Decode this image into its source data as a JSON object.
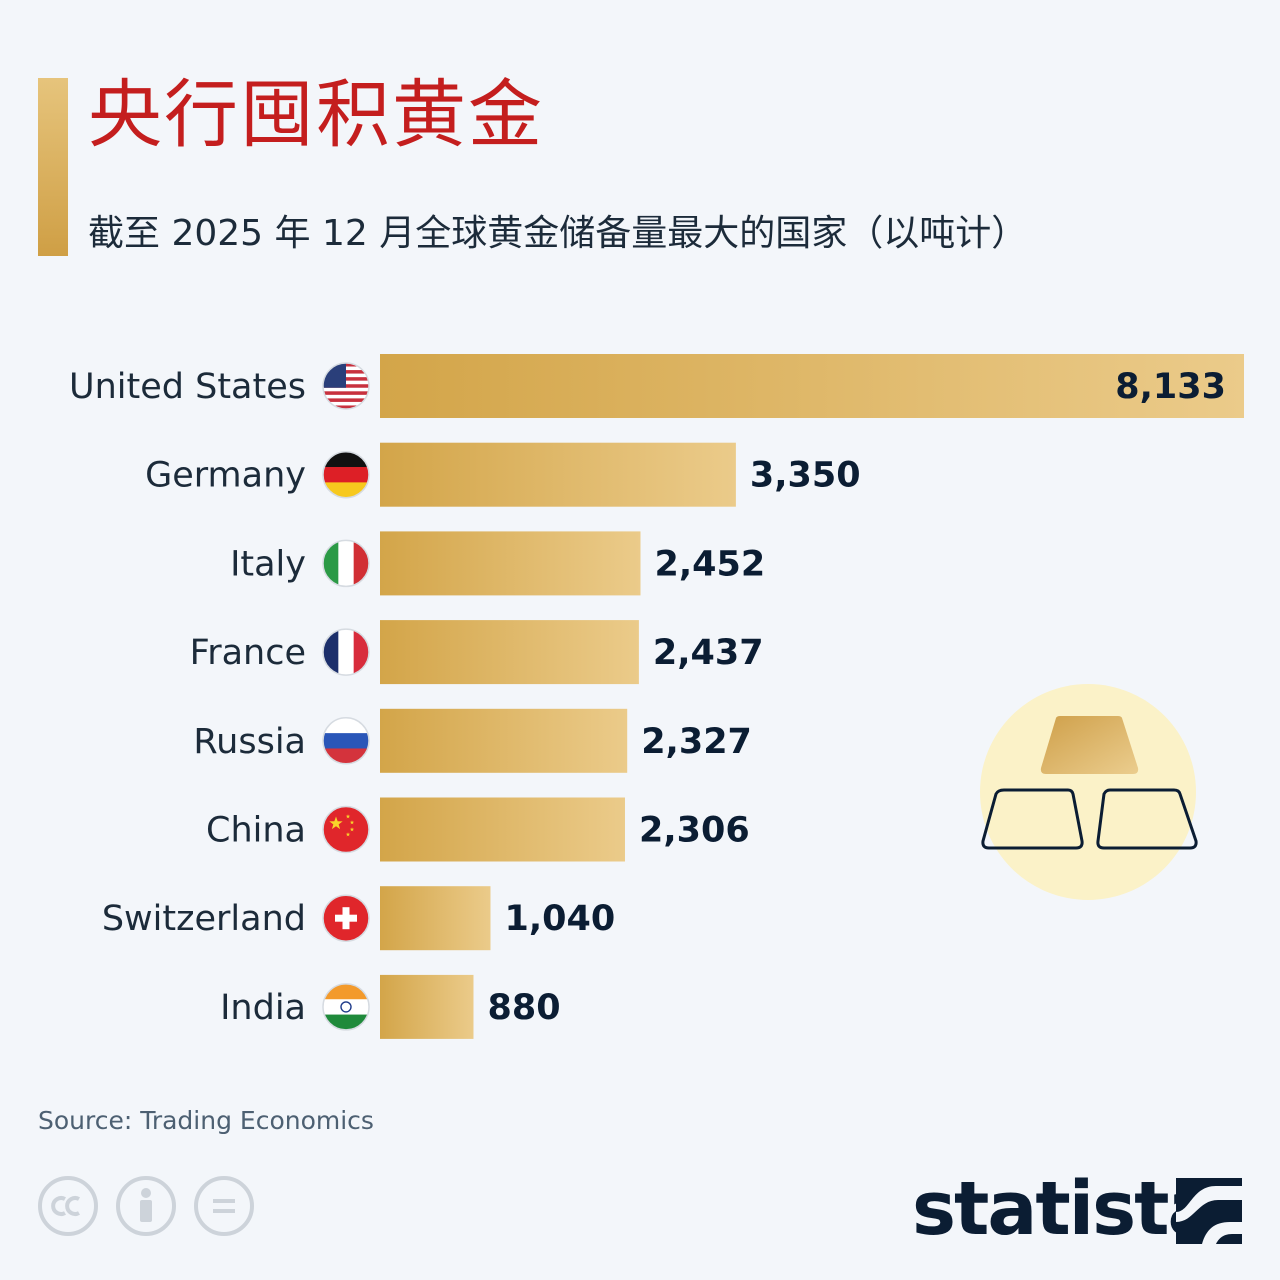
{
  "header": {
    "title": "央行囤积黄金",
    "subtitle": "截至 2025 年 12 月全球黄金储备量最大的国家（以吨计）"
  },
  "chart_data": {
    "type": "bar",
    "orientation": "horizontal",
    "categories": [
      "United States",
      "Germany",
      "Italy",
      "France",
      "Russia",
      "China",
      "Switzerland",
      "India"
    ],
    "values": [
      8133,
      3350,
      2452,
      2437,
      2327,
      2306,
      1040,
      880
    ],
    "value_labels": [
      "8,133",
      "3,350",
      "2,452",
      "2,437",
      "2,327",
      "2,306",
      "1,040",
      "880"
    ],
    "flags": [
      "us-flag-icon",
      "germany-flag-icon",
      "italy-flag-icon",
      "france-flag-icon",
      "russia-flag-icon",
      "china-flag-icon",
      "switzerland-flag-icon",
      "india-flag-icon"
    ],
    "xlim": [
      0,
      8133
    ],
    "grid": false,
    "legend": "none",
    "bar_color_start": "#d3a549",
    "bar_color_end": "#ebcb8a",
    "label_color": "#1c2b3a",
    "value_color": "#0b1d33"
  },
  "footer": {
    "source": "Source: Trading Economics",
    "brand": "statista",
    "license_icons": [
      "cc-icon",
      "by-attribution-icon",
      "nd-no-derivatives-icon"
    ]
  },
  "decoration": {
    "illustration": "gold-bars-icon",
    "circle_color": "#fbf2c8"
  }
}
